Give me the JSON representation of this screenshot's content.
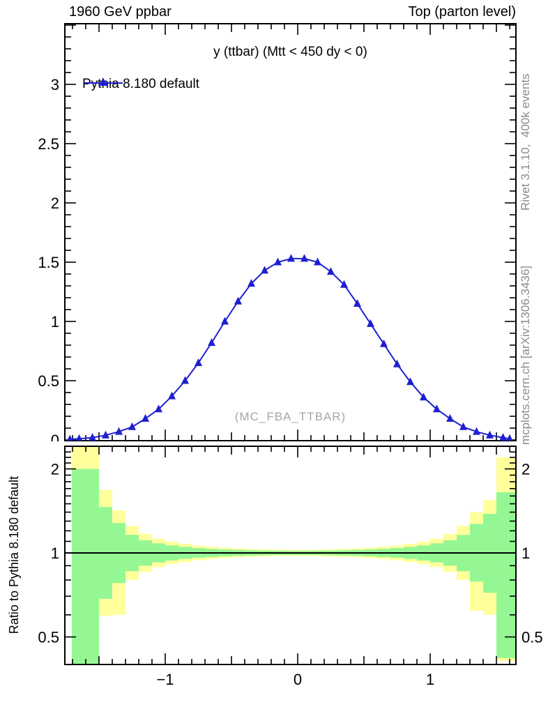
{
  "header": {
    "left_title": "1960 GeV ppbar",
    "right_title": "Top (parton level)"
  },
  "sidebar_text": {
    "top": "Rivet 3.1.10,  400k events",
    "bottom": "mcplots.cern.ch [arXiv:1306.3436]"
  },
  "main_panel": {
    "title": "y (ttbar) (Mtt < 450 dy < 0)",
    "watermark": "(MC_FBA_TTBAR)",
    "legend": [
      {
        "label": "Pythia 8.180 default",
        "marker": "triangle-up",
        "color": "#1f1fd0"
      }
    ]
  },
  "ratio_panel": {
    "ylabel": "Ratio to Pythia 8.180 default"
  },
  "colors": {
    "series_blue": "#1f1fd0",
    "band_yellow": "#ffff9c",
    "band_green": "#94f794",
    "reference_line": "#000000",
    "gray_text": "#8a8a8a",
    "watermark_gray": "#a6a6a6"
  },
  "chart_data": [
    {
      "type": "line",
      "panel": "main",
      "title": "y (ttbar) (Mtt < 450 dy < 0)",
      "xlim": [
        -1.758,
        1.647
      ],
      "ylim": [
        0,
        3.51
      ],
      "xticks_labeled": [
        -1,
        0,
        1
      ],
      "yticks_labeled": [
        0,
        0.5,
        1,
        1.5,
        2,
        2.5,
        3
      ],
      "minor_tick_step": 0.1,
      "legend_position": "top-left",
      "grid": false,
      "series": [
        {
          "name": "Pythia 8.180 default",
          "color": "#1f1fd0",
          "marker": "triangle-up",
          "x": [
            -1.72,
            -1.65,
            -1.55,
            -1.45,
            -1.35,
            -1.25,
            -1.15,
            -1.05,
            -0.95,
            -0.85,
            -0.75,
            -0.65,
            -0.55,
            -0.45,
            -0.35,
            -0.25,
            -0.15,
            -0.05,
            0.05,
            0.15,
            0.25,
            0.35,
            0.45,
            0.55,
            0.65,
            0.75,
            0.85,
            0.95,
            1.05,
            1.15,
            1.25,
            1.35,
            1.45,
            1.55,
            1.6
          ],
          "y": [
            0.005,
            0.01,
            0.02,
            0.04,
            0.07,
            0.11,
            0.18,
            0.26,
            0.37,
            0.5,
            0.65,
            0.82,
            1.0,
            1.17,
            1.32,
            1.43,
            1.5,
            1.53,
            1.53,
            1.5,
            1.42,
            1.31,
            1.15,
            0.98,
            0.81,
            0.64,
            0.49,
            0.36,
            0.26,
            0.18,
            0.11,
            0.07,
            0.04,
            0.02,
            0.01
          ]
        }
      ]
    },
    {
      "type": "area",
      "panel": "ratio",
      "ylabel": "Ratio to Pythia 8.180 default",
      "yscale": "log",
      "ylim": [
        0.398,
        2.41
      ],
      "xlim": [
        -1.758,
        1.647
      ],
      "reference_line": 1,
      "yticks_labeled": [
        2,
        1,
        0.5
      ],
      "xticks_labeled": [
        -1,
        0,
        1
      ],
      "band_colors": {
        "outer": "#ffff9c",
        "inner": "#94f794"
      },
      "bins": [
        {
          "x0": -1.705,
          "x1": -1.5,
          "y_lo": 0.398,
          "y_hi": 2.45,
          "g_lo": 0.398,
          "g_hi": 2.0
        },
        {
          "x0": -1.5,
          "x1": -1.4,
          "y_lo": 0.595,
          "y_hi": 1.68,
          "g_lo": 0.685,
          "g_hi": 1.46
        },
        {
          "x0": -1.4,
          "x1": -1.3,
          "y_lo": 0.6,
          "y_hi": 1.42,
          "g_lo": 0.78,
          "g_hi": 1.28
        },
        {
          "x0": -1.3,
          "x1": -1.2,
          "y_lo": 0.8,
          "y_hi": 1.25,
          "g_lo": 0.86,
          "g_hi": 1.16
        },
        {
          "x0": -1.2,
          "x1": -1.1,
          "y_lo": 0.855,
          "y_hi": 1.17,
          "g_lo": 0.9,
          "g_hi": 1.11
        },
        {
          "x0": -1.1,
          "x1": -1.0,
          "y_lo": 0.89,
          "y_hi": 1.125,
          "g_lo": 0.925,
          "g_hi": 1.082
        },
        {
          "x0": -1.0,
          "x1": -0.9,
          "y_lo": 0.912,
          "y_hi": 1.097,
          "g_lo": 0.94,
          "g_hi": 1.064
        },
        {
          "x0": -0.9,
          "x1": -0.8,
          "y_lo": 0.928,
          "y_hi": 1.078,
          "g_lo": 0.952,
          "g_hi": 1.051
        },
        {
          "x0": -0.8,
          "x1": -0.7,
          "y_lo": 0.941,
          "y_hi": 1.063,
          "g_lo": 0.961,
          "g_hi": 1.041
        },
        {
          "x0": -0.7,
          "x1": -0.6,
          "y_lo": 0.951,
          "y_hi": 1.052,
          "g_lo": 0.967,
          "g_hi": 1.034
        },
        {
          "x0": -0.6,
          "x1": -0.5,
          "y_lo": 0.958,
          "y_hi": 1.044,
          "g_lo": 0.972,
          "g_hi": 1.029
        },
        {
          "x0": -0.5,
          "x1": -0.4,
          "y_lo": 0.964,
          "y_hi": 1.038,
          "g_lo": 0.976,
          "g_hi": 1.025
        },
        {
          "x0": -0.4,
          "x1": -0.3,
          "y_lo": 0.968,
          "y_hi": 1.033,
          "g_lo": 0.979,
          "g_hi": 1.022
        },
        {
          "x0": -0.3,
          "x1": -0.2,
          "y_lo": 0.972,
          "y_hi": 1.03,
          "g_lo": 0.981,
          "g_hi": 1.019
        },
        {
          "x0": -0.2,
          "x1": -0.1,
          "y_lo": 0.974,
          "y_hi": 1.027,
          "g_lo": 0.983,
          "g_hi": 1.018
        },
        {
          "x0": -0.1,
          "x1": 0.0,
          "y_lo": 0.975,
          "y_hi": 1.026,
          "g_lo": 0.983,
          "g_hi": 1.017
        },
        {
          "x0": 0.0,
          "x1": 0.1,
          "y_lo": 0.975,
          "y_hi": 1.026,
          "g_lo": 0.983,
          "g_hi": 1.017
        },
        {
          "x0": 0.1,
          "x1": 0.2,
          "y_lo": 0.974,
          "y_hi": 1.027,
          "g_lo": 0.983,
          "g_hi": 1.018
        },
        {
          "x0": 0.2,
          "x1": 0.3,
          "y_lo": 0.972,
          "y_hi": 1.03,
          "g_lo": 0.981,
          "g_hi": 1.019
        },
        {
          "x0": 0.3,
          "x1": 0.4,
          "y_lo": 0.968,
          "y_hi": 1.033,
          "g_lo": 0.979,
          "g_hi": 1.022
        },
        {
          "x0": 0.4,
          "x1": 0.5,
          "y_lo": 0.964,
          "y_hi": 1.038,
          "g_lo": 0.976,
          "g_hi": 1.025
        },
        {
          "x0": 0.5,
          "x1": 0.6,
          "y_lo": 0.958,
          "y_hi": 1.044,
          "g_lo": 0.972,
          "g_hi": 1.029
        },
        {
          "x0": 0.6,
          "x1": 0.7,
          "y_lo": 0.951,
          "y_hi": 1.052,
          "g_lo": 0.967,
          "g_hi": 1.034
        },
        {
          "x0": 0.7,
          "x1": 0.8,
          "y_lo": 0.941,
          "y_hi": 1.063,
          "g_lo": 0.961,
          "g_hi": 1.041
        },
        {
          "x0": 0.8,
          "x1": 0.9,
          "y_lo": 0.928,
          "y_hi": 1.078,
          "g_lo": 0.952,
          "g_hi": 1.051
        },
        {
          "x0": 0.9,
          "x1": 1.0,
          "y_lo": 0.912,
          "y_hi": 1.097,
          "g_lo": 0.94,
          "g_hi": 1.064
        },
        {
          "x0": 1.0,
          "x1": 1.1,
          "y_lo": 0.89,
          "y_hi": 1.125,
          "g_lo": 0.925,
          "g_hi": 1.082
        },
        {
          "x0": 1.1,
          "x1": 1.2,
          "y_lo": 0.855,
          "y_hi": 1.17,
          "g_lo": 0.9,
          "g_hi": 1.11
        },
        {
          "x0": 1.2,
          "x1": 1.3,
          "y_lo": 0.8,
          "y_hi": 1.25,
          "g_lo": 0.86,
          "g_hi": 1.16
        },
        {
          "x0": 1.3,
          "x1": 1.4,
          "y_lo": 0.62,
          "y_hi": 1.4,
          "g_lo": 0.79,
          "g_hi": 1.27
        },
        {
          "x0": 1.4,
          "x1": 1.5,
          "y_lo": 0.6,
          "y_hi": 1.55,
          "g_lo": 0.72,
          "g_hi": 1.38
        },
        {
          "x0": 1.5,
          "x1": 1.647,
          "y_lo": 0.41,
          "y_hi": 2.2,
          "g_lo": 0.42,
          "g_hi": 1.65
        }
      ]
    }
  ]
}
